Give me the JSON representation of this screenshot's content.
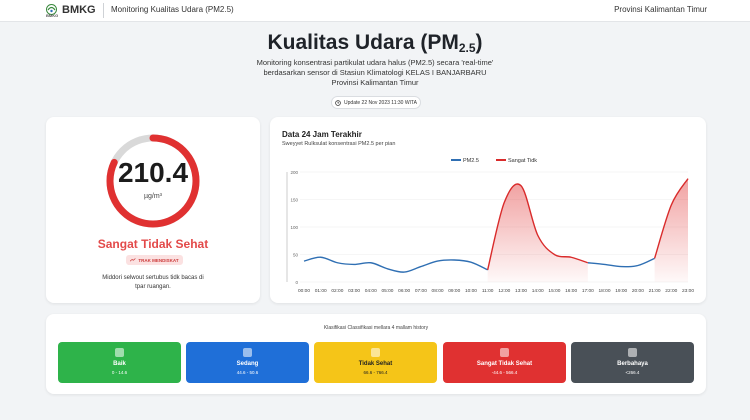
{
  "header": {
    "brand": "BMKG",
    "brand_sub": "BMKG",
    "title": "Monitoring Kualitas Udara (PM2.5)",
    "region": "Provinsi Kalimantan Timur"
  },
  "hero": {
    "title_main": "Kualitas Udara (PM",
    "title_sub": "2.5",
    "title_end": ")",
    "desc_line1": "Monitoring konsentrasi partikulat udara halus (PM2.5) secara 'real-time'",
    "desc_line2": "berdasarkan sensor di Stasiun Klimatologi KELAS I BANJARBARU",
    "desc_line3": "Provinsi Kalimantan Timur",
    "update": "Update 22 Nov 2023 11:30 WITA"
  },
  "gauge": {
    "value": "210.4",
    "unit": "µg/m³",
    "fraction": 0.82,
    "status": "Sangat Tidak Sehat",
    "trend": "TRAK MENDISKAT",
    "advice": "Middori selwout sertubus tidk bacas di tpar ruangan.",
    "color_fill": "#e03131",
    "color_track": "#d9d9d9"
  },
  "chart_data": {
    "type": "area",
    "title": "Data 24 Jam Terakhir",
    "subtitle": "Sweyyet Rulksulat konsentrasi PM2.5 per pian",
    "x": [
      "00:00",
      "01:00",
      "02:00",
      "03:00",
      "04:00",
      "05:00",
      "06:00",
      "07:00",
      "08:00",
      "09:00",
      "10:00",
      "11:00",
      "12:00",
      "13:00",
      "14:00",
      "15:00",
      "16:00",
      "17:00",
      "18:00",
      "19:00",
      "20:00",
      "21:00",
      "22:00",
      "23:00"
    ],
    "ylim": [
      0,
      200
    ],
    "yticks": [
      0,
      50,
      100,
      150,
      200
    ],
    "series": [
      {
        "name": "PM2.5",
        "color": "#2f6fb3",
        "values": [
          38,
          45,
          35,
          32,
          35,
          24,
          18,
          28,
          38,
          40,
          36,
          22,
          null,
          null,
          null,
          null,
          null,
          35,
          32,
          28,
          30,
          43,
          null,
          null
        ]
      },
      {
        "name": "Sangat Tidk",
        "color": "#d92b2b",
        "values": [
          null,
          null,
          null,
          null,
          null,
          null,
          null,
          null,
          null,
          null,
          null,
          22,
          145,
          175,
          85,
          50,
          45,
          35,
          null,
          null,
          null,
          43,
          140,
          188
        ]
      }
    ]
  },
  "classification": {
    "title": "Klasifikasi Classifikasi mellara 4 mallam history",
    "categories": [
      {
        "name": "Baik",
        "range": "0 - 14.6",
        "color": "#2eb34a"
      },
      {
        "name": "Sedang",
        "range": "44.6 - 50.6",
        "color": "#1f6fd8"
      },
      {
        "name": "Tidak Sehat",
        "range": "66.6 - 766.4",
        "color": "#f5c518"
      },
      {
        "name": "Sangat Tidak Sehat",
        "range": "-44.6 - 566.4",
        "color": "#e03131"
      },
      {
        "name": "Berbahaya",
        "range": "<266.4",
        "color": "#495057"
      }
    ]
  }
}
